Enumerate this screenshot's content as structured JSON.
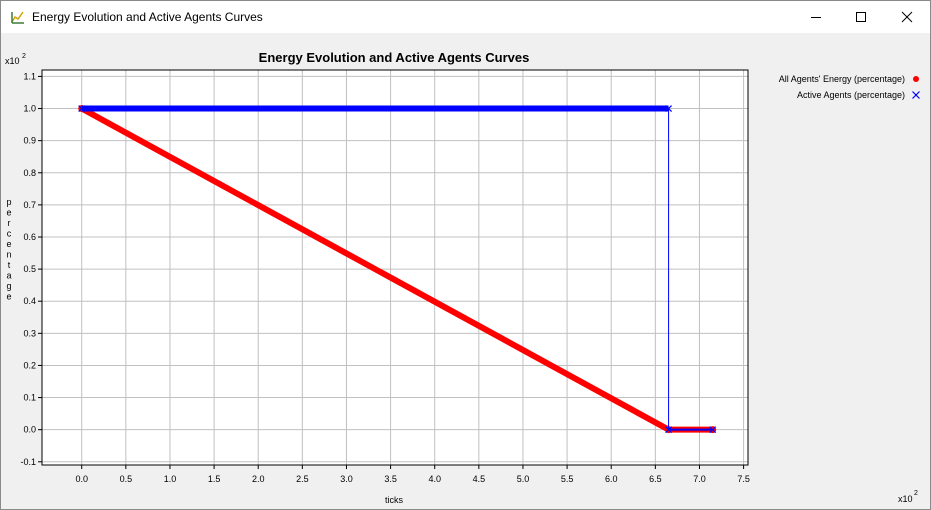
{
  "window": {
    "title": "Energy Evolution and Active Agents Curves",
    "icons": {
      "app": "chart-app-icon",
      "minimize": "minimize-icon",
      "maximize": "maximize-icon",
      "close": "close-icon"
    }
  },
  "colors": {
    "energy": "#ff0000",
    "agents": "#0000ff",
    "grid": "#c0c0c0"
  },
  "chart_data": {
    "type": "line",
    "title": "Energy Evolution and Active Agents Curves",
    "xlabel": "ticks",
    "ylabel": "percentage",
    "x_multiplier": "x10",
    "y_multiplier": "x10",
    "multiplier_exponent": "2",
    "xlim": [
      -0.45,
      7.55
    ],
    "ylim": [
      -0.11,
      1.12
    ],
    "x_ticks": [
      "0.0",
      "0.5",
      "1.0",
      "1.5",
      "2.0",
      "2.5",
      "3.0",
      "3.5",
      "4.0",
      "4.5",
      "5.0",
      "5.5",
      "6.0",
      "6.5",
      "7.0",
      "7.5"
    ],
    "y_ticks": [
      "-0.1",
      "0.0",
      "0.1",
      "0.2",
      "0.3",
      "0.4",
      "0.5",
      "0.6",
      "0.7",
      "0.8",
      "0.9",
      "1.0",
      "1.1"
    ],
    "grid": true,
    "legend_position": "top-right",
    "series": [
      {
        "name": "All Agents' Energy (percentage)",
        "marker": "dot",
        "points": [
          [
            0.0,
            1.0
          ],
          [
            6.65,
            0.0
          ],
          [
            7.15,
            0.0
          ]
        ]
      },
      {
        "name": "Active Agents (percentage)",
        "marker": "x",
        "points": [
          [
            0.0,
            1.0
          ],
          [
            6.65,
            1.0
          ],
          [
            6.65,
            0.0
          ],
          [
            7.15,
            0.0
          ]
        ]
      }
    ]
  }
}
